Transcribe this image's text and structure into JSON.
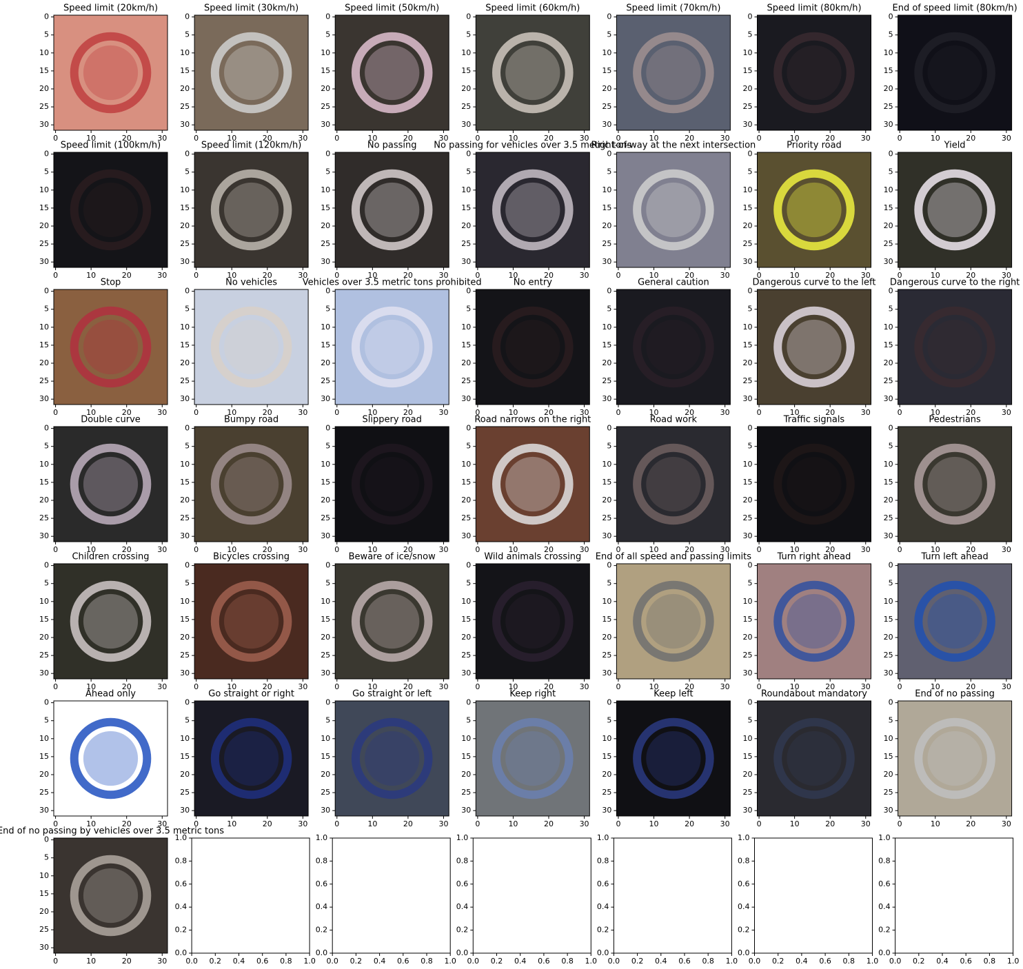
{
  "chart_data": {
    "type": "image-grid",
    "xlim": [
      -0.5,
      31.5
    ],
    "ylim": [
      31.5,
      -0.5
    ],
    "xticks": [
      0,
      10,
      20,
      30
    ],
    "yticks": [
      0,
      5,
      10,
      15,
      20,
      25,
      30
    ],
    "panels": [
      {
        "title": "Speed limit (20km/h)",
        "color": "#d89080",
        "sign_color": "#c04040"
      },
      {
        "title": "Speed limit (30km/h)",
        "color": "#7a6a5a",
        "sign_color": "#d0d0d0"
      },
      {
        "title": "Speed limit (50km/h)",
        "color": "#3a3530",
        "sign_color": "#e0c0d0"
      },
      {
        "title": "Speed limit (60km/h)",
        "color": "#40403a",
        "sign_color": "#d0c8c0"
      },
      {
        "title": "Speed limit (70km/h)",
        "color": "#5a6070",
        "sign_color": "#a09090"
      },
      {
        "title": "Speed limit (80km/h)",
        "color": "#1a1a20",
        "sign_color": "#3a2a30"
      },
      {
        "title": "End of speed limit (80km/h)",
        "color": "#101018",
        "sign_color": "#202028"
      },
      {
        "title": "Speed limit (100km/h)",
        "color": "#141418",
        "sign_color": "#2a1c20"
      },
      {
        "title": "Speed limit (120km/h)",
        "color": "#3a3530",
        "sign_color": "#c0b8b0"
      },
      {
        "title": "No passing",
        "color": "#302c2a",
        "sign_color": "#d8d0d0"
      },
      {
        "title": "No passing for vehicles over 3.5 metric tons",
        "color": "#2a2830",
        "sign_color": "#c8c0c8"
      },
      {
        "title": "Right-of-way at the next intersection",
        "color": "#808090",
        "sign_color": "#d0d0d0"
      },
      {
        "title": "Priority road",
        "color": "#5a5030",
        "sign_color": "#f0f040"
      },
      {
        "title": "Yield",
        "color": "#303028",
        "sign_color": "#f0e8f0"
      },
      {
        "title": "Stop",
        "color": "#8a6040",
        "sign_color": "#b03040"
      },
      {
        "title": "No vehicles",
        "color": "#c8d0e0",
        "sign_color": "#d8d0c8"
      },
      {
        "title": "Vehicles over 3.5 metric tons prohibited",
        "color": "#b0c0e0",
        "sign_color": "#e0e0f0"
      },
      {
        "title": "No entry",
        "color": "#141418",
        "sign_color": "#2a1c20"
      },
      {
        "title": "General caution",
        "color": "#1a1a20",
        "sign_color": "#2a2028"
      },
      {
        "title": "Dangerous curve to the left",
        "color": "#4a4030",
        "sign_color": "#e0d8e0"
      },
      {
        "title": "Dangerous curve to the right",
        "color": "#2a2a34",
        "sign_color": "#3a2a30"
      },
      {
        "title": "Double curve",
        "color": "#2a2a2a",
        "sign_color": "#c0b0c0"
      },
      {
        "title": "Bumpy road",
        "color": "#4a4030",
        "sign_color": "#a09090"
      },
      {
        "title": "Slippery road",
        "color": "#101014",
        "sign_color": "#201820"
      },
      {
        "title": "Road narrows on the right",
        "color": "#6a4030",
        "sign_color": "#e0e0e0"
      },
      {
        "title": "Road work",
        "color": "#2a2a30",
        "sign_color": "#706060"
      },
      {
        "title": "Traffic signals",
        "color": "#101014",
        "sign_color": "#201818"
      },
      {
        "title": "Pedestrians",
        "color": "#3a3830",
        "sign_color": "#b0a0a0"
      },
      {
        "title": "Children crossing",
        "color": "#303028",
        "sign_color": "#d0c8c8"
      },
      {
        "title": "Bicycles crossing",
        "color": "#4a2a20",
        "sign_color": "#a06050"
      },
      {
        "title": "Beware of ice/snow",
        "color": "#3a3830",
        "sign_color": "#c0b0b0"
      },
      {
        "title": "Wild animals crossing",
        "color": "#141418",
        "sign_color": "#2a2030"
      },
      {
        "title": "End of all speed and passing limits",
        "color": "#b0a080",
        "sign_color": "#707070"
      },
      {
        "title": "Turn right ahead",
        "color": "#a08080",
        "sign_color": "#3050a0"
      },
      {
        "title": "Turn left ahead",
        "color": "#606070",
        "sign_color": "#2050b0"
      },
      {
        "title": "Ahead only",
        "color": "#ffffff",
        "sign_color": "#2050c0"
      },
      {
        "title": "Go straight or right",
        "color": "#1a1a24",
        "sign_color": "#203080"
      },
      {
        "title": "Go straight or left",
        "color": "#404858",
        "sign_color": "#2a3a80"
      },
      {
        "title": "Keep right",
        "color": "#707478",
        "sign_color": "#6a80b0"
      },
      {
        "title": "Keep left",
        "color": "#101014",
        "sign_color": "#2a3a80"
      },
      {
        "title": "Roundabout mandatory",
        "color": "#2a2a30",
        "sign_color": "#303850"
      },
      {
        "title": "End of no passing",
        "color": "#b0a898",
        "sign_color": "#c0c0c0"
      },
      {
        "title": "End of no passing by vehicles over 3.5 metric tons",
        "color": "#3a3430",
        "sign_color": "#b0a8a0"
      }
    ],
    "empty_axes": {
      "xlim": [
        0,
        1
      ],
      "ylim": [
        0,
        1
      ],
      "xticks": [
        {
          "value": 0,
          "label": "0.0"
        },
        {
          "value": 0.2,
          "label": "0.2"
        },
        {
          "value": 0.4,
          "label": "0.4"
        },
        {
          "value": 0.6,
          "label": "0.6"
        },
        {
          "value": 0.8,
          "label": "0.8"
        },
        {
          "value": 1,
          "label": "1.0"
        }
      ],
      "yticks": [
        {
          "value": 0,
          "label": "0.0"
        },
        {
          "value": 0.2,
          "label": "0.2"
        },
        {
          "value": 0.4,
          "label": "0.4"
        },
        {
          "value": 0.6,
          "label": "0.6"
        },
        {
          "value": 0.8,
          "label": "0.8"
        },
        {
          "value": 1,
          "label": "1.0"
        }
      ]
    }
  }
}
